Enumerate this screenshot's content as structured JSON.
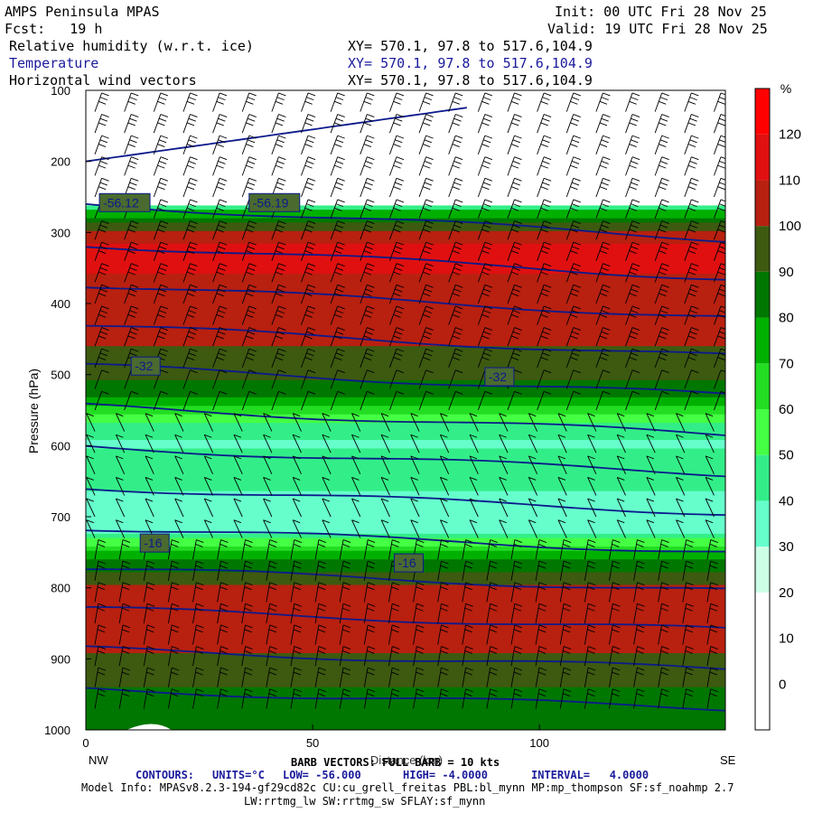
{
  "header": {
    "title": "AMPS Peninsula MPAS",
    "fcst": "Fcst:   19 h",
    "init": "Init: 00 UTC Fri 28 Nov 25",
    "valid": "Valid: 19 UTC Fri 28 Nov 25",
    "fields": [
      {
        "name": "Relative humidity (w.r.t. ice)",
        "xy": "XY= 570.1, 97.8 to 517.6,104.9"
      },
      {
        "name": "Temperature",
        "xy": "XY= 570.1, 97.8 to 517.6,104.9"
      },
      {
        "name": "Horizontal wind vectors",
        "xy": "XY= 570.1, 97.8 to 517.6,104.9"
      }
    ]
  },
  "chart_data": {
    "type": "heatmap",
    "xlabel": "Distance (km)",
    "ylabel": "Pressure (hPa)",
    "xlim": [
      0,
      141
    ],
    "ylim": [
      1000,
      100
    ],
    "xticks": [
      0,
      50,
      100
    ],
    "yticks": [
      100,
      200,
      300,
      400,
      500,
      600,
      700,
      800,
      900,
      1000
    ],
    "x_endpoints": {
      "left": "NW",
      "right": "SE"
    },
    "colorbar": {
      "unit": "%",
      "levels": [
        0,
        10,
        20,
        30,
        40,
        50,
        60,
        70,
        80,
        90,
        100,
        110,
        120
      ],
      "colors": [
        "#ffffff",
        "#ffffff",
        "#ffffff",
        "#ccffe6",
        "#66ffcc",
        "#33ee88",
        "#44ff44",
        "#22dd22",
        "#00b000",
        "#007700",
        "#3d5a10",
        "#b82010",
        "#e01010",
        "#ff0000"
      ]
    },
    "rh_layers": [
      {
        "p": 100,
        "rh": 10
      },
      {
        "p": 200,
        "rh": 10
      },
      {
        "p": 260,
        "rh": 10
      },
      {
        "p": 270,
        "rh": 70
      },
      {
        "p": 290,
        "rh": 95
      },
      {
        "p": 320,
        "rh": 112
      },
      {
        "p": 350,
        "rh": 112
      },
      {
        "p": 380,
        "rh": 103
      },
      {
        "p": 440,
        "rh": 102
      },
      {
        "p": 500,
        "rh": 95
      },
      {
        "p": 540,
        "rh": 75
      },
      {
        "p": 570,
        "rh": 45
      },
      {
        "p": 600,
        "rh": 38
      },
      {
        "p": 640,
        "rh": 50
      },
      {
        "p": 680,
        "rh": 35
      },
      {
        "p": 720,
        "rh": 38
      },
      {
        "p": 760,
        "rh": 80
      },
      {
        "p": 800,
        "rh": 103
      },
      {
        "p": 840,
        "rh": 110
      },
      {
        "p": 880,
        "rh": 103
      },
      {
        "p": 940,
        "rh": 90
      },
      {
        "p": 1000,
        "rh": 85
      }
    ],
    "temperature_contours": {
      "units": "°C",
      "low": -56.0,
      "high": -4.0,
      "interval": 4.0,
      "labels": [
        {
          "text": "-56.12",
          "x": 3,
          "p": 258
        },
        {
          "text": "-56.19",
          "x": 36,
          "p": 258
        },
        {
          "text": "-32",
          "x": 10,
          "p": 488
        },
        {
          "text": "-32",
          "x": 88,
          "p": 503
        },
        {
          "text": "-16",
          "x": 12,
          "p": 737
        },
        {
          "text": "-16",
          "x": 68,
          "p": 765
        }
      ]
    },
    "wind_barbs": {
      "full_barb_kts": 10
    }
  },
  "footer": {
    "barb": "BARB VECTORS: FULL BARB = 10 kts",
    "contours_label": "CONTOURS:",
    "contours_units": "UNITS=°C",
    "contours_low": "LOW= -56.000",
    "contours_high": "HIGH= -4.0000",
    "contours_interval": "INTERVAL=   4.0000",
    "model_info": "Model Info: MPASv8.2.3-194-gf29cd82c CU:cu_grell_freitas PBL:bl_mynn MP:mp_thompson SF:sf_noahmp 2.7",
    "model_info2": "LW:rrtmg_lw SW:rrtmg_sw SFLAY:sf_mynn"
  }
}
